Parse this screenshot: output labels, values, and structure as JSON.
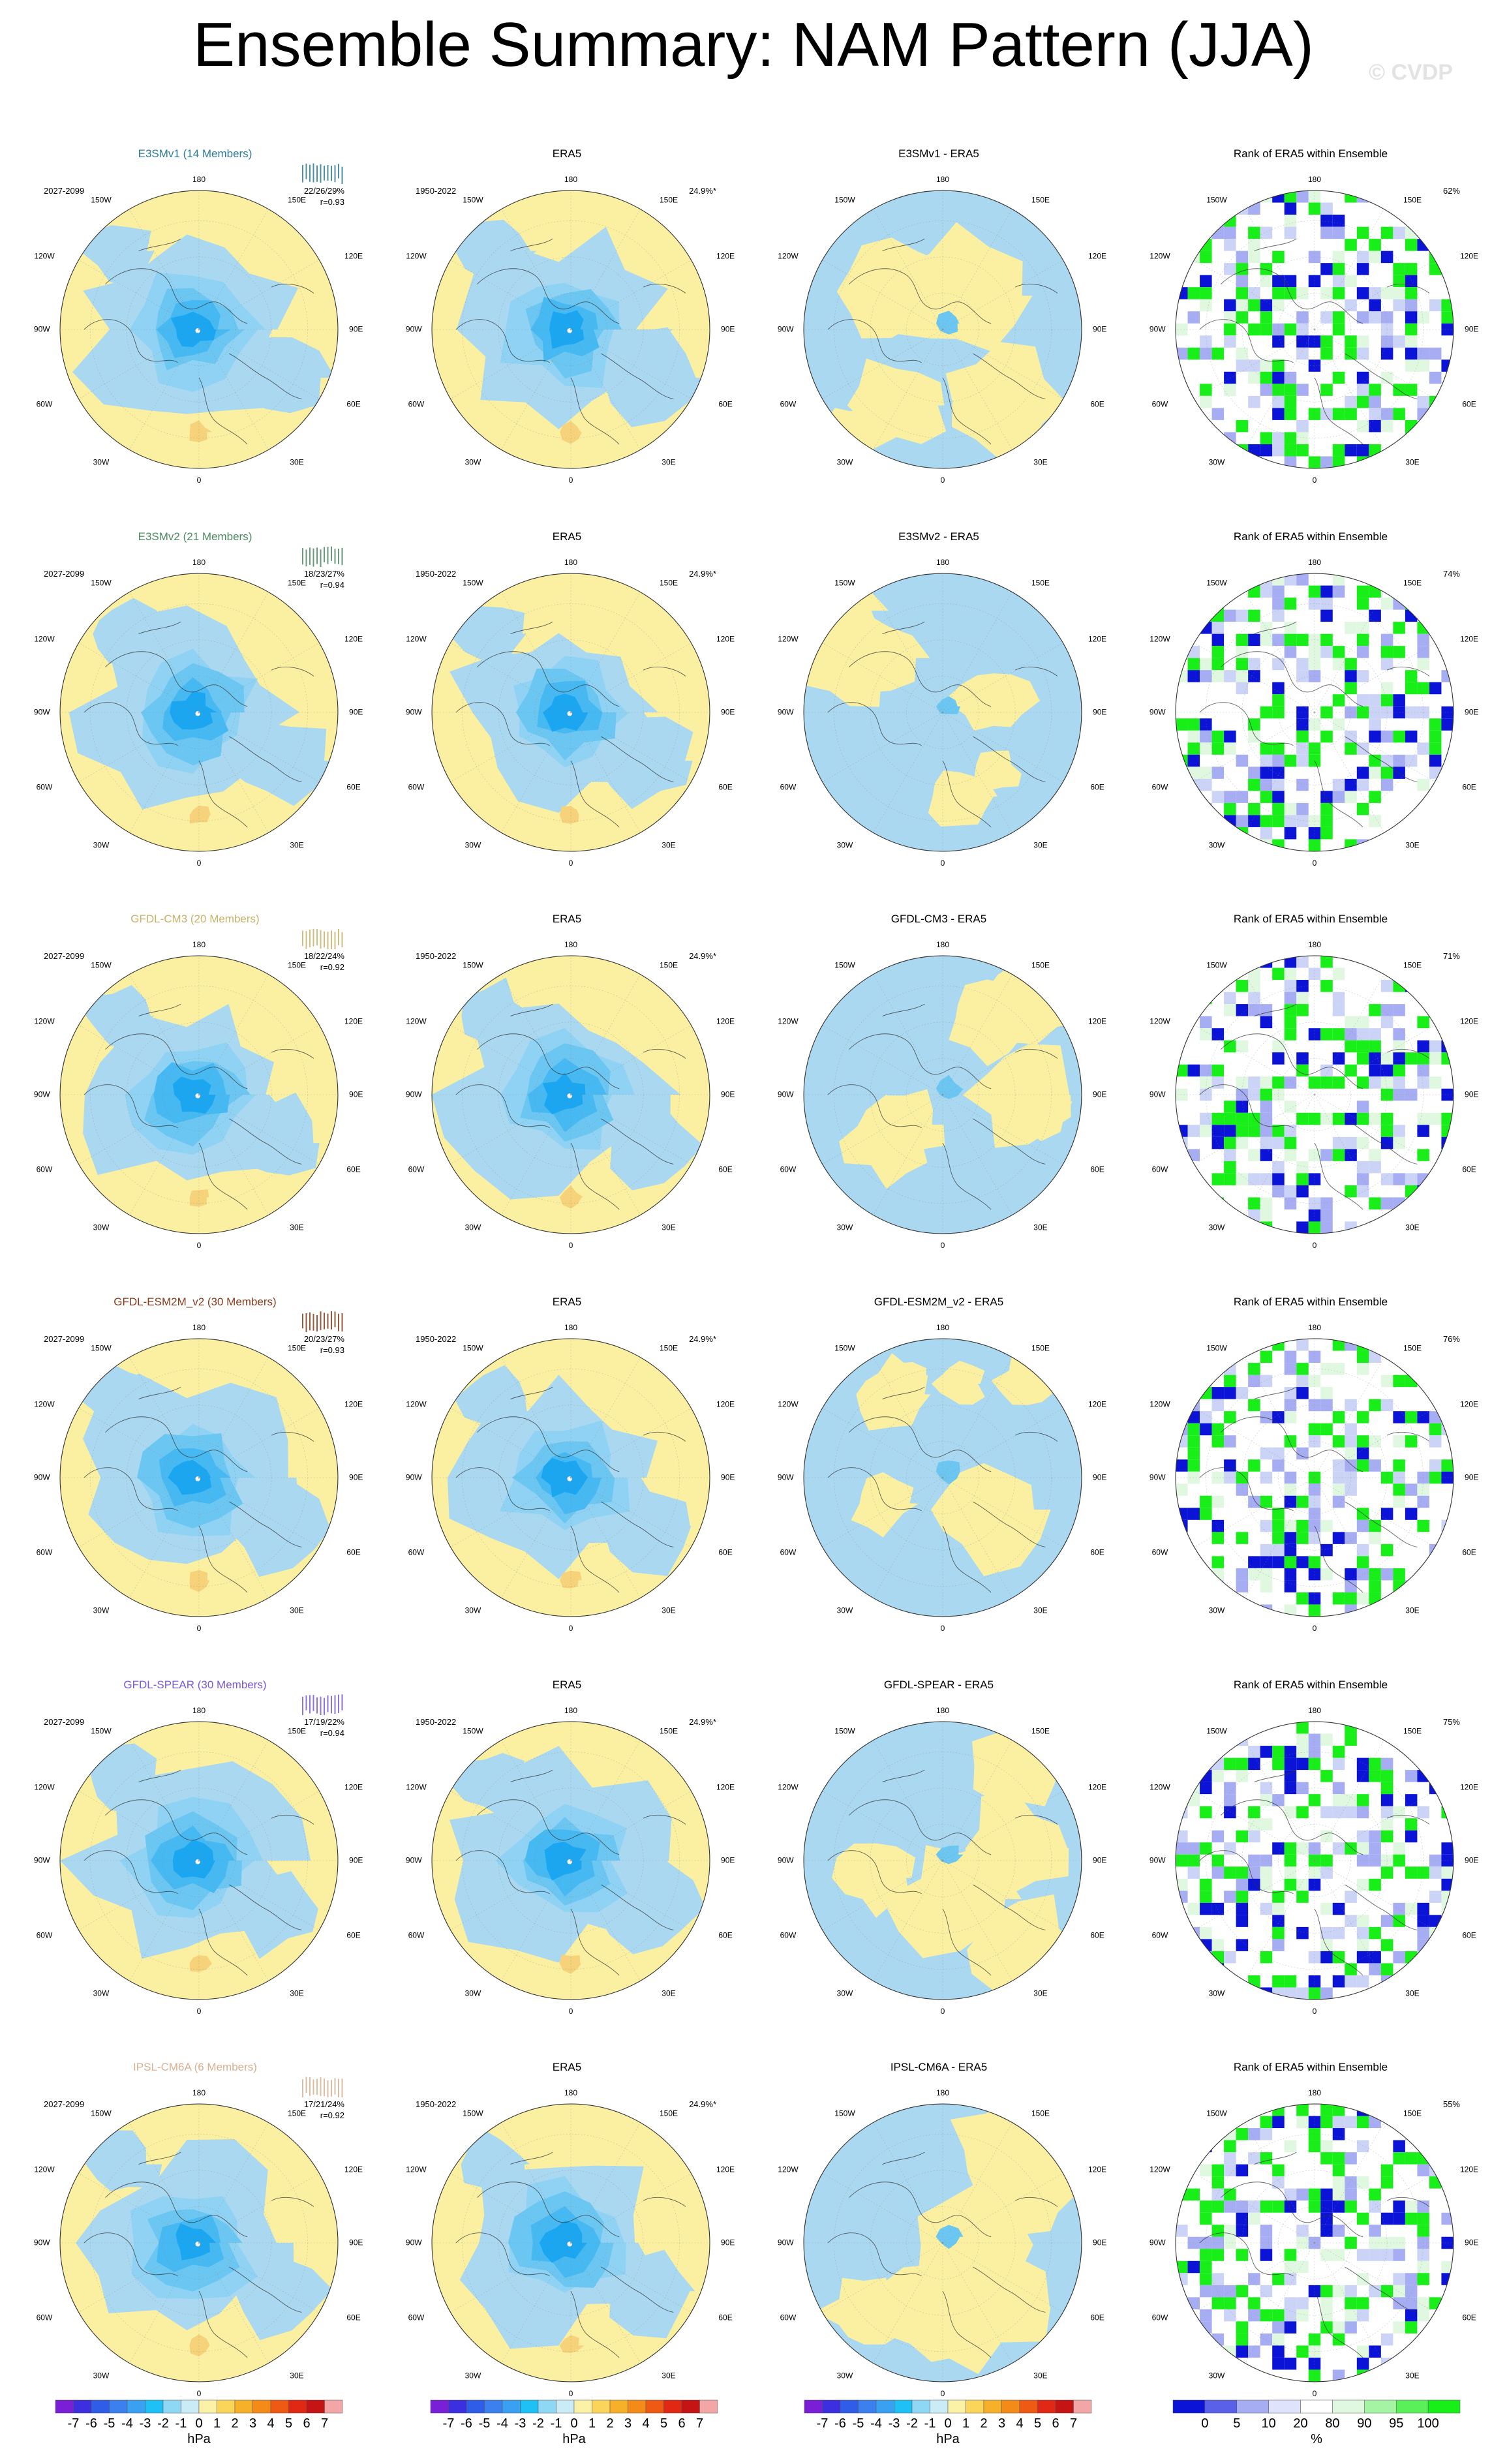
{
  "title": "Ensemble Summary: NAM Pattern (JJA)",
  "watermark": "© CVDP",
  "colors": {
    "ocean": "#a9d8f0",
    "land": "#fbf0a2",
    "neg": [
      "#1aa6f0",
      "#46b8f2",
      "#6cc6f2",
      "#8fd2f3"
    ],
    "pos": [
      "#f6d27a",
      "#f0b64b"
    ],
    "rank_low": "#0b13d6",
    "rank_mid": "#cbd3f7",
    "rank_high": "#18ee18",
    "grid_line": "#888888",
    "coast": "#333333"
  },
  "map_labels": {
    "top": "180",
    "bottom": "0",
    "upper_left": "150W",
    "upper_right": "150E",
    "left_upper": "120W",
    "right_upper": "120E",
    "left": "90W",
    "right": "90E",
    "left_lower": "60W",
    "right_lower": "60E",
    "lower_left": "30W",
    "lower_right": "30E"
  },
  "rows": [
    {
      "model": "E3SMv1 (14 Members)",
      "model_color": "#2b7b9e",
      "period": "2027-2099",
      "pcts": "22/26/29%",
      "r": "r=0.93",
      "era5_title": "ERA5",
      "era5_period": "1950-2022",
      "era5_pct": "24.9%*",
      "diff_title": "E3SMv1 - ERA5",
      "rank_title": "Rank of ERA5 within Ensemble",
      "rank_pct": "62%"
    },
    {
      "model": "E3SMv2 (21 Members)",
      "model_color": "#4c8a62",
      "period": "2027-2099",
      "pcts": "18/23/27%",
      "r": "r=0.94",
      "era5_title": "ERA5",
      "era5_period": "1950-2022",
      "era5_pct": "24.9%*",
      "diff_title": "E3SMv2 - ERA5",
      "rank_title": "Rank of ERA5 within Ensemble",
      "rank_pct": "74%"
    },
    {
      "model": "GFDL-CM3 (20 Members)",
      "model_color": "#c8b26a",
      "period": "2027-2099",
      "pcts": "18/22/24%",
      "r": "r=0.92",
      "era5_title": "ERA5",
      "era5_period": "1950-2022",
      "era5_pct": "24.9%*",
      "diff_title": "GFDL-CM3 - ERA5",
      "rank_title": "Rank of ERA5 within Ensemble",
      "rank_pct": "71%"
    },
    {
      "model": "GFDL-ESM2M_v2 (30 Members)",
      "model_color": "#8a3a1a",
      "period": "2027-2099",
      "pcts": "20/23/27%",
      "r": "r=0.93",
      "era5_title": "ERA5",
      "era5_period": "1950-2022",
      "era5_pct": "24.9%*",
      "diff_title": "GFDL-ESM2M_v2 - ERA5",
      "rank_title": "Rank of ERA5 within Ensemble",
      "rank_pct": "76%"
    },
    {
      "model": "GFDL-SPEAR (30 Members)",
      "model_color": "#7a5ad8",
      "period": "2027-2099",
      "pcts": "17/19/22%",
      "r": "r=0.94",
      "era5_title": "ERA5",
      "era5_period": "1950-2022",
      "era5_pct": "24.9%*",
      "diff_title": "GFDL-SPEAR - ERA5",
      "rank_title": "Rank of ERA5 within Ensemble",
      "rank_pct": "75%"
    },
    {
      "model": "IPSL-CM6A (6 Members)",
      "model_color": "#d8b090",
      "period": "2027-2099",
      "pcts": "17/21/24%",
      "r": "r=0.92",
      "era5_title": "ERA5",
      "era5_period": "1950-2022",
      "era5_pct": "24.9%*",
      "diff_title": "IPSL-CM6A - ERA5",
      "rank_title": "Rank of ERA5 within Ensemble",
      "rank_pct": "55%"
    }
  ],
  "colorbars": {
    "hpa_ticks": [
      "-7",
      "-6",
      "-5",
      "-4",
      "-3",
      "-2",
      "-1",
      "0",
      "1",
      "2",
      "3",
      "4",
      "5",
      "6",
      "7"
    ],
    "hpa_unit": "hPa",
    "hpa_colors": [
      "#7a1fd6",
      "#3b2fe0",
      "#2f5de8",
      "#3b80ee",
      "#3aa0f2",
      "#1ec0f5",
      "#8fd8f5",
      "#c9ecf7",
      "#fbf2a8",
      "#fbd45a",
      "#f7b02a",
      "#f48a18",
      "#ee5a14",
      "#e02814",
      "#c41414",
      "#f2a6a6"
    ],
    "rank_ticks": [
      "0",
      "5",
      "10",
      "20",
      "80",
      "90",
      "95",
      "100"
    ],
    "rank_unit": "%",
    "rank_colors": [
      "#0b13d6",
      "#5a60e8",
      "#a7adf2",
      "#dfe3fb",
      "#ffffff",
      "#dff8df",
      "#a4f4a4",
      "#5af05a",
      "#18ee18"
    ]
  },
  "chart_data": {
    "type": "heatmap",
    "title": "Ensemble Summary: NAM Pattern (JJA)",
    "colorbar_hpa": {
      "ticks": [
        -7,
        -6,
        -5,
        -4,
        -3,
        -2,
        -1,
        0,
        1,
        2,
        3,
        4,
        5,
        6,
        7
      ],
      "unit": "hPa"
    },
    "colorbar_rank": {
      "ticks": [
        0,
        5,
        10,
        20,
        80,
        90,
        95,
        100
      ],
      "unit": "%"
    },
    "panels": [
      {
        "row": "E3SMv1 (14 Members)",
        "ensemble_pct_range": "22/26/29%",
        "pattern_corr": 0.93,
        "rank_pct": 62
      },
      {
        "row": "E3SMv2 (21 Members)",
        "ensemble_pct_range": "18/23/27%",
        "pattern_corr": 0.94,
        "rank_pct": 74
      },
      {
        "row": "GFDL-CM3 (20 Members)",
        "ensemble_pct_range": "18/22/24%",
        "pattern_corr": 0.92,
        "rank_pct": 71
      },
      {
        "row": "GFDL-ESM2M_v2 (30 Members)",
        "ensemble_pct_range": "20/23/27%",
        "pattern_corr": 0.93,
        "rank_pct": 76
      },
      {
        "row": "GFDL-SPEAR (30 Members)",
        "ensemble_pct_range": "17/19/22%",
        "pattern_corr": 0.94,
        "rank_pct": 75
      },
      {
        "row": "IPSL-CM6A (6 Members)",
        "ensemble_pct_range": "17/21/24%",
        "pattern_corr": 0.92,
        "rank_pct": 55
      }
    ],
    "era5_pct_variance": "24.9%*"
  }
}
